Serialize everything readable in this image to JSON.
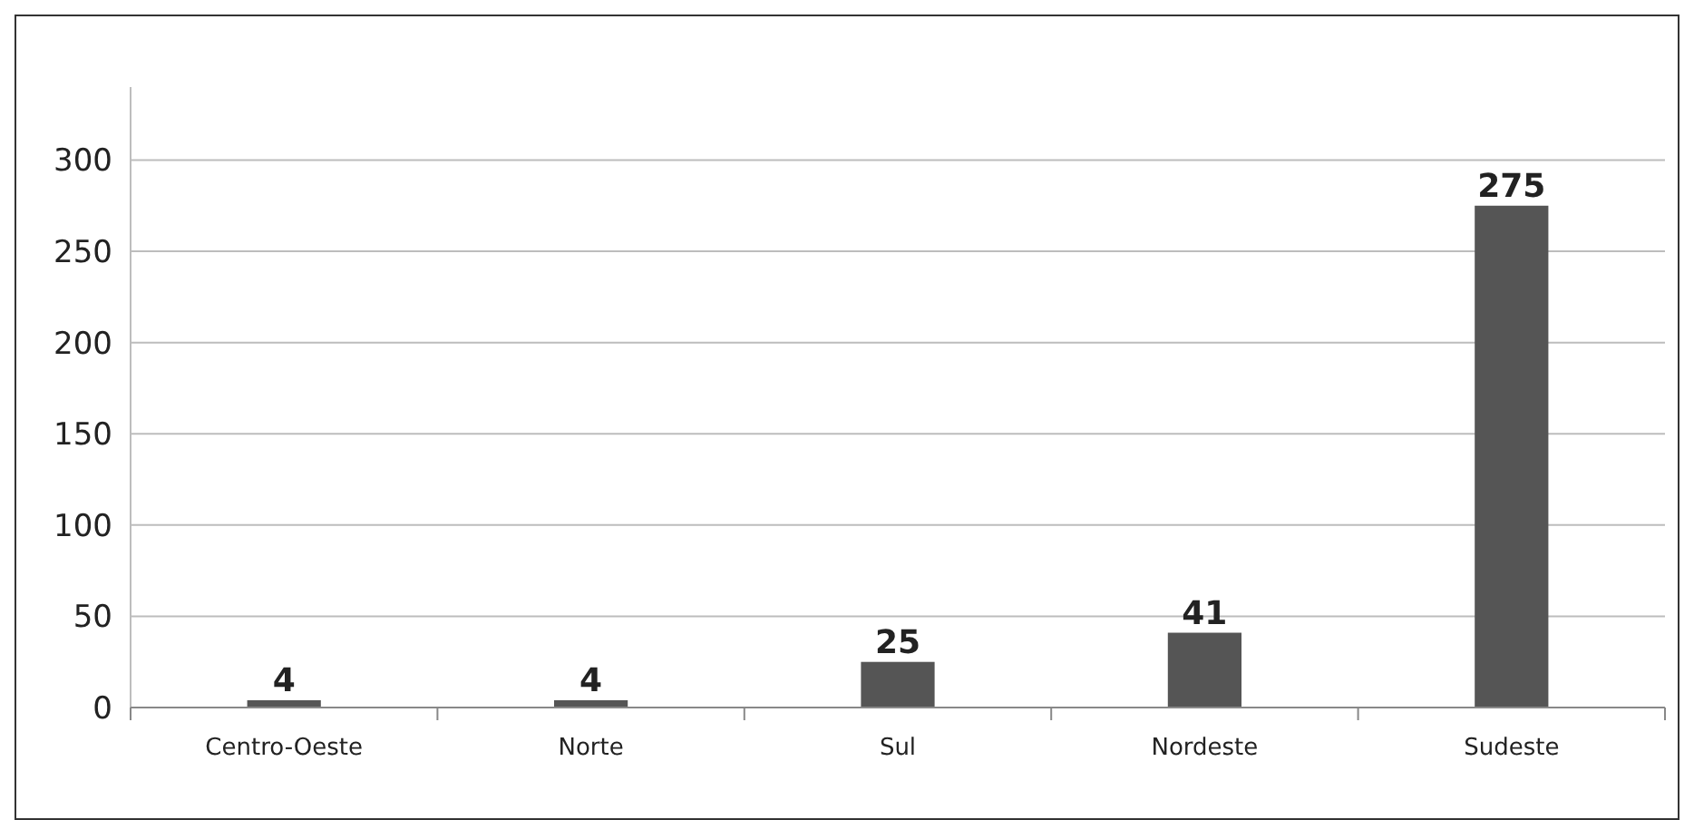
{
  "chart_data": {
    "type": "bar",
    "categories": [
      "Centro-Oeste",
      "Norte",
      "Sul",
      "Nordeste",
      "Sudeste"
    ],
    "values": [
      4,
      4,
      25,
      41,
      275
    ],
    "color": "#555555",
    "ylim": [
      0,
      340
    ],
    "yticks": [
      0,
      50,
      100,
      150,
      200,
      250,
      300
    ],
    "grid": "y",
    "data_labels": true
  }
}
